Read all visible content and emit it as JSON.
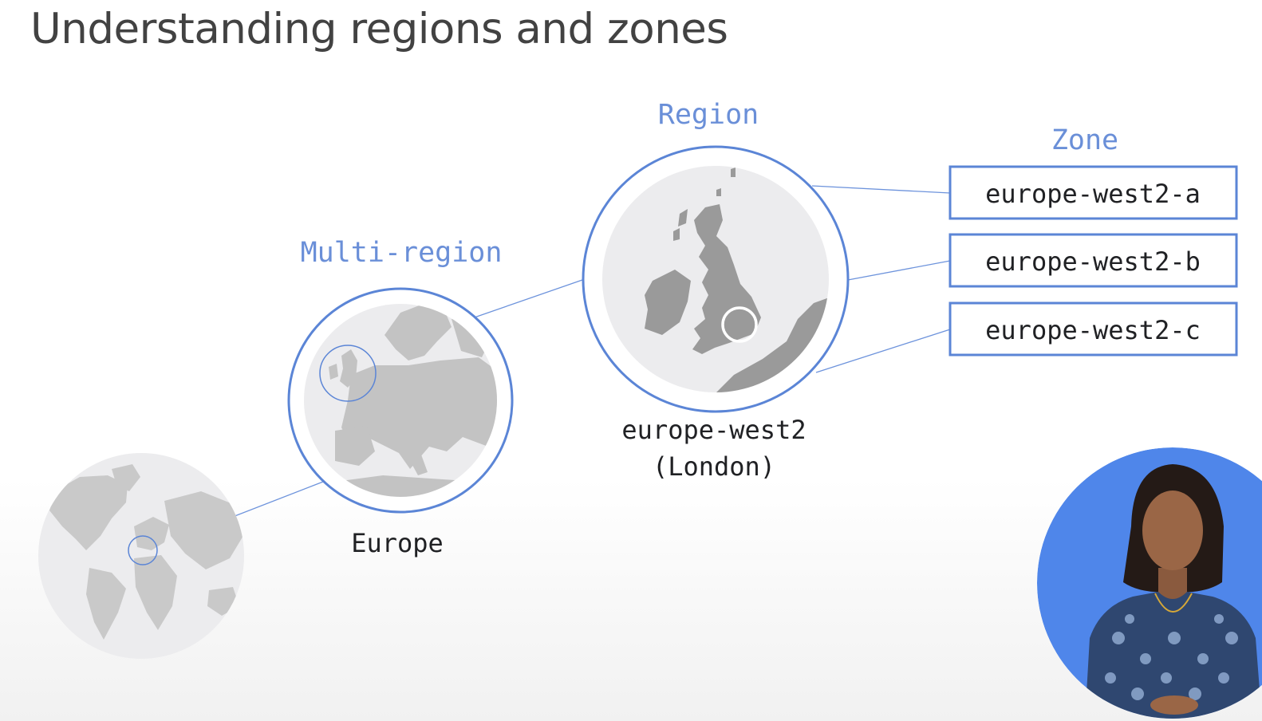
{
  "title": "Understanding regions and zones",
  "levels": {
    "multi_region": {
      "heading": "Multi-region",
      "label": "Europe"
    },
    "region": {
      "heading": "Region",
      "label_line1": "europe-west2",
      "label_line2": "(London)"
    },
    "zone": {
      "heading": "Zone",
      "items": [
        {
          "label": "europe-west2-a"
        },
        {
          "label": "europe-west2-b"
        },
        {
          "label": "europe-west2-c"
        }
      ]
    }
  },
  "colors": {
    "accent_blue": "#5b85d6",
    "heading_blue": "#6a8fd8",
    "map_land": "#9a9a9a",
    "map_sea": "#f1f1f3",
    "presenter_bg": "#4f86ea"
  },
  "icons": {
    "world": "world-map-icon",
    "europe": "europe-map-icon",
    "uk": "uk-map-icon",
    "presenter": "presenter-video"
  }
}
